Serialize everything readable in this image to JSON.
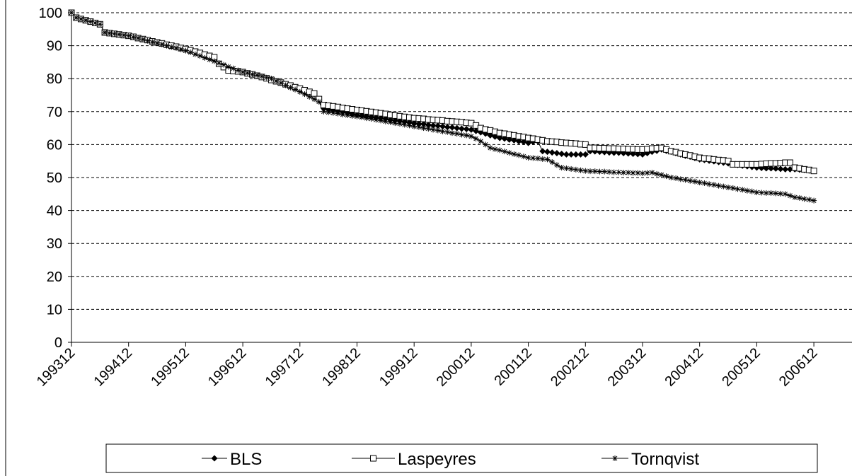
{
  "chart_data": {
    "type": "line",
    "categories": [
      "199312",
      null,
      null,
      null,
      null,
      null,
      null,
      null,
      null,
      null,
      null,
      null,
      "199412",
      null,
      null,
      null,
      null,
      null,
      null,
      null,
      null,
      null,
      null,
      null,
      "199512",
      null,
      null,
      null,
      null,
      null,
      null,
      null,
      null,
      null,
      null,
      null,
      "199612",
      null,
      null,
      null,
      null,
      null,
      null,
      null,
      null,
      null,
      null,
      null,
      "199712",
      null,
      null,
      null,
      null,
      null,
      null,
      null,
      null,
      null,
      null,
      null,
      "199812",
      null,
      null,
      null,
      null,
      null,
      null,
      null,
      null,
      null,
      null,
      null,
      "199912",
      null,
      null,
      null,
      null,
      null,
      null,
      null,
      null,
      null,
      null,
      null,
      "200012",
      null,
      null,
      null,
      null,
      null,
      null,
      null,
      null,
      null,
      null,
      null,
      "200112",
      null,
      null,
      null,
      null,
      null,
      null,
      null,
      null,
      null,
      null,
      null,
      "200212",
      null,
      null,
      null,
      null,
      null,
      null,
      null,
      null,
      null,
      null,
      null,
      "200312",
      null,
      null,
      null,
      null,
      null,
      null,
      null,
      null,
      null,
      null,
      null,
      "200412",
      null,
      null,
      null,
      null,
      null,
      null,
      null,
      null,
      null,
      null,
      null,
      "200512",
      null,
      null,
      null,
      null,
      null,
      null,
      null,
      null,
      null,
      null,
      null,
      "200612"
    ],
    "series": [
      {
        "name": "BLS",
        "color": "#000000",
        "marker": "diamond",
        "values": [
          100,
          98.5,
          98.1,
          97.7,
          97.3,
          96.9,
          96.5,
          94,
          93.8,
          93.6,
          93.4,
          93.2,
          93,
          92.7,
          92.3,
          92,
          91.7,
          91.3,
          91,
          90.7,
          90.3,
          90,
          89.7,
          89.3,
          89,
          88.6,
          88.2,
          87.8,
          87.3,
          86.9,
          86.5,
          84.5,
          83.5,
          82.5,
          82.3,
          82.2,
          82,
          81.6,
          81.3,
          80.9,
          80.5,
          80.1,
          79.6,
          79.2,
          78.8,
          78.3,
          77.9,
          77.4,
          77,
          76.5,
          76,
          75.5,
          73.8,
          71,
          70.7,
          70.4,
          70.1,
          69.9,
          69.6,
          69.3,
          69,
          68.8,
          68.6,
          68.4,
          68.2,
          68,
          67.8,
          67.5,
          67.3,
          67.1,
          66.9,
          66.7,
          66.5,
          66.3,
          66.2,
          66,
          65.8,
          65.7,
          65.5,
          65.3,
          65.2,
          65,
          64.8,
          64.7,
          64.5,
          64.1,
          63.7,
          63.3,
          62.8,
          62.4,
          62,
          61.8,
          61.5,
          61.3,
          61,
          60.8,
          60.5,
          60.8,
          61,
          58,
          57.8,
          57.6,
          57.4,
          57.2,
          57,
          57,
          57,
          57,
          57,
          58,
          57.9,
          57.8,
          57.7,
          57.6,
          57.5,
          57.5,
          57.4,
          57.3,
          57.2,
          57.1,
          57,
          57.4,
          57.8,
          58.1,
          58.5,
          58.1,
          57.8,
          57.4,
          57,
          56.6,
          56.3,
          55.9,
          55.5,
          55.3,
          55.1,
          54.9,
          54.7,
          54.5,
          54.3,
          54,
          53.8,
          53.6,
          53.4,
          53.2,
          53,
          52.9,
          52.8,
          52.8,
          52.7,
          52.6,
          52.5,
          52.5,
          52.5,
          52.4,
          52.3,
          52.1,
          52
        ]
      },
      {
        "name": "Laspeyres",
        "color": "#000000",
        "marker": "square",
        "values": [
          100,
          98.5,
          98.1,
          97.7,
          97.3,
          96.9,
          96.5,
          94,
          93.8,
          93.6,
          93.4,
          93.2,
          93,
          92.7,
          92.3,
          92,
          91.7,
          91.3,
          91,
          90.7,
          90.3,
          90,
          89.7,
          89.3,
          89,
          88.6,
          88.2,
          87.8,
          87.3,
          86.9,
          86.5,
          84.5,
          83.5,
          82.5,
          82.3,
          82.2,
          82,
          81.6,
          81.3,
          80.9,
          80.5,
          80.1,
          79.6,
          79.2,
          78.8,
          78.3,
          77.9,
          77.4,
          77,
          76.5,
          76,
          75.5,
          73.8,
          72,
          71.8,
          71.6,
          71.4,
          71.1,
          70.9,
          70.7,
          70.5,
          70.3,
          70.1,
          69.9,
          69.7,
          69.5,
          69.3,
          69,
          68.8,
          68.6,
          68.4,
          68.2,
          68,
          67.9,
          67.8,
          67.6,
          67.5,
          67.4,
          67.3,
          67.1,
          67,
          66.9,
          66.8,
          66.6,
          66.5,
          65.8,
          65,
          64.6,
          64.3,
          63.9,
          63.5,
          63.3,
          63,
          62.8,
          62.5,
          62.3,
          62,
          61.8,
          61.5,
          61.3,
          61,
          60.9,
          60.8,
          60.6,
          60.5,
          60.4,
          60.3,
          60.1,
          60,
          59,
          59,
          58.9,
          58.9,
          58.8,
          58.8,
          58.7,
          58.7,
          58.6,
          58.6,
          58.5,
          58.5,
          58.6,
          58.8,
          58.9,
          59,
          58.5,
          58,
          57.7,
          57.3,
          57,
          56.7,
          56.3,
          56,
          55.8,
          55.7,
          55.5,
          55.3,
          55.2,
          55,
          54,
          54,
          54,
          54,
          54,
          54,
          54.1,
          54.2,
          54.3,
          54.3,
          54.4,
          54.5,
          54.5,
          53,
          52.8,
          52.5,
          52.3,
          52
        ]
      },
      {
        "name": "Tornqvist",
        "color": "#000000",
        "marker": "asterisk",
        "values": [
          100,
          98.5,
          98.1,
          97.7,
          97.3,
          96.9,
          96.5,
          94,
          93.8,
          93.6,
          93.4,
          93.2,
          93,
          92.6,
          92.3,
          91.9,
          91.5,
          91.1,
          90.8,
          90.4,
          90,
          89.6,
          89.3,
          88.9,
          88.5,
          88,
          87.4,
          86.9,
          86.3,
          85.8,
          85.3,
          84.7,
          84.2,
          83.6,
          83.1,
          82.5,
          82,
          81.7,
          81.3,
          81,
          80.7,
          80.3,
          80,
          79.3,
          78.7,
          78,
          77.3,
          76.7,
          76,
          75.3,
          74.5,
          73.8,
          73,
          70,
          69.8,
          69.6,
          69.4,
          69.1,
          68.9,
          68.7,
          68.5,
          68.3,
          68,
          67.8,
          67.5,
          67.3,
          67,
          66.8,
          66.5,
          66.3,
          66,
          65.8,
          65.5,
          65.3,
          65,
          64.8,
          64.5,
          64.3,
          64,
          63.8,
          63.5,
          63.3,
          63,
          62.8,
          62.5,
          61.8,
          61,
          60,
          59,
          58.6,
          58.3,
          57.9,
          57.5,
          57.1,
          56.8,
          56.4,
          56,
          55.9,
          55.8,
          55.6,
          55.5,
          54.7,
          53.8,
          53,
          52.8,
          52.6,
          52.4,
          52.2,
          52,
          51.9,
          51.9,
          51.8,
          51.8,
          51.7,
          51.6,
          51.6,
          51.5,
          51.5,
          51.4,
          51.4,
          51.3,
          51.4,
          51.5,
          51.1,
          50.8,
          50.4,
          50,
          49.8,
          49.5,
          49.3,
          49,
          48.8,
          48.5,
          48.3,
          48,
          47.8,
          47.5,
          47.3,
          47,
          46.8,
          46.5,
          46.3,
          46,
          45.8,
          45.5,
          45.4,
          45.3,
          45.3,
          45.2,
          45.1,
          45,
          44.5,
          44,
          43.8,
          43.5,
          43.3,
          43
        ]
      }
    ],
    "ylim": [
      0,
      100
    ],
    "yticks": [
      0,
      10,
      20,
      30,
      40,
      50,
      60,
      70,
      80,
      90,
      100
    ],
    "grid": true,
    "legend": "bottom"
  }
}
